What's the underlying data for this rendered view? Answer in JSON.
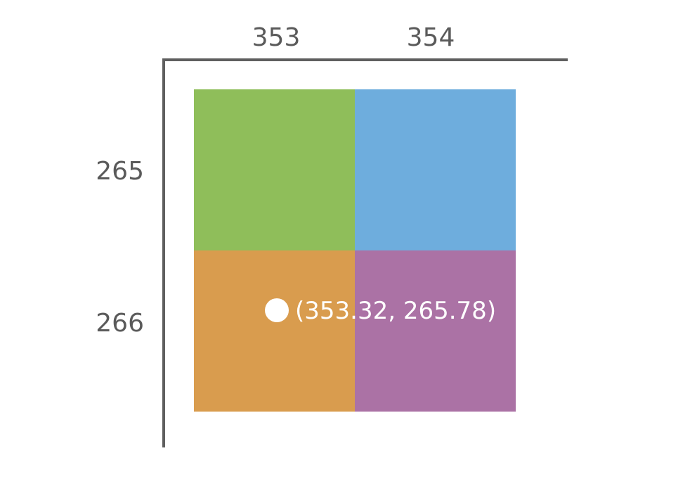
{
  "x_axis": {
    "tick_labels": [
      "353",
      "354"
    ]
  },
  "y_axis": {
    "tick_labels": [
      "265",
      "266"
    ]
  },
  "cells": [
    {
      "name": "top-left",
      "color": "#8fbe5a"
    },
    {
      "name": "top-right",
      "color": "#6eaddd"
    },
    {
      "name": "bottom-left",
      "color": "#d99c4e"
    },
    {
      "name": "bottom-right",
      "color": "#ab72a5"
    }
  ],
  "point": {
    "label": "(353.32, 265.78)",
    "x": 353.32,
    "y": 265.78
  },
  "colors": {
    "axis": "#5f5f5f",
    "tick_text": "#5a5a5a",
    "point": "#ffffff"
  }
}
